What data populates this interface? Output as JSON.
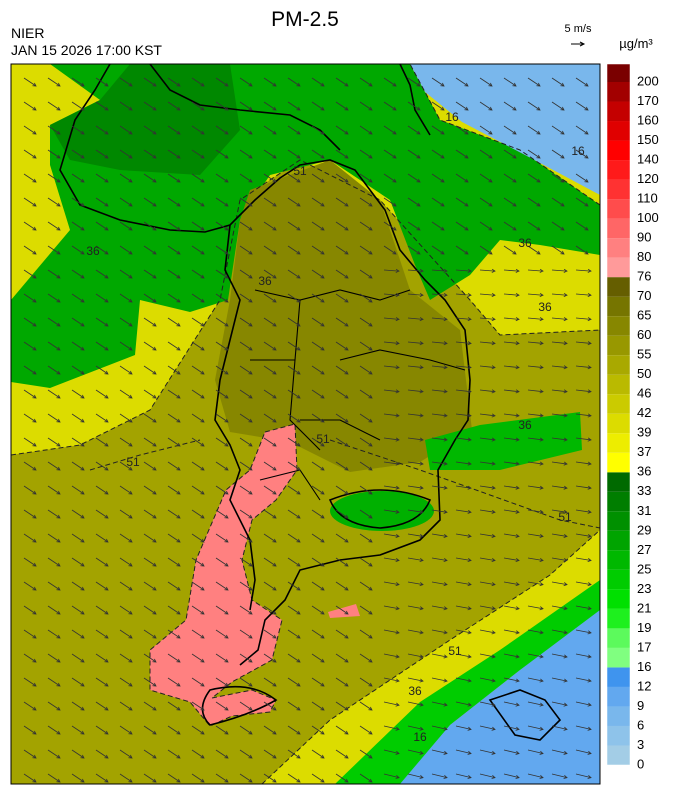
{
  "header": {
    "title": "PM-2.5",
    "agency": "NIER",
    "datetime": "JAN 15 2026 17:00 KST",
    "wind_scale": "5 m/s"
  },
  "colorbar": {
    "unit": "µg/m³",
    "ticks": [
      0,
      3,
      6,
      9,
      12,
      16,
      17,
      19,
      21,
      23,
      25,
      27,
      29,
      31,
      33,
      36,
      37,
      39,
      42,
      46,
      50,
      55,
      60,
      65,
      70,
      76,
      80,
      90,
      100,
      110,
      120,
      140,
      150,
      160,
      170,
      200
    ],
    "colors": [
      "#a3cde6",
      "#8ec3ea",
      "#79b7ec",
      "#62a8ef",
      "#3f94ee",
      "#80ff80",
      "#5cfa5c",
      "#1ef01e",
      "#00e000",
      "#00cc00",
      "#00b800",
      "#00a400",
      "#009000",
      "#007e00",
      "#006a00",
      "#ffff00",
      "#eded00",
      "#dcdc00",
      "#cbcb00",
      "#baba00",
      "#a9a900",
      "#989800",
      "#878700",
      "#767500",
      "#655e00",
      "#ff9a9a",
      "#ff8080",
      "#ff6666",
      "#ff4c4c",
      "#ff3232",
      "#ff1a1a",
      "#ff0000",
      "#e00000",
      "#c40000",
      "#a20000",
      "#7a0000"
    ]
  },
  "map": {
    "contour_labels": [
      "36",
      "16",
      "16",
      "36",
      "36",
      "36",
      "51",
      "51",
      "51",
      "51",
      "51",
      "36",
      "16",
      "36"
    ]
  }
}
